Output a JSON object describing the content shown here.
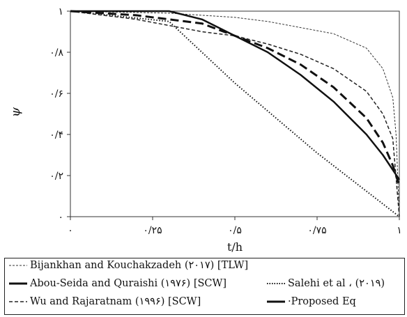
{
  "chart_data": {
    "type": "line",
    "xlabel": "t/h",
    "ylabel": "ψ",
    "xlim": [
      0,
      1
    ],
    "ylim": [
      0,
      1
    ],
    "x_ticks": [
      0,
      0.25,
      0.5,
      0.75,
      1
    ],
    "x_tick_labels": [
      "۰",
      "۰/۲۵",
      "۰/۵",
      "۰/۷۵",
      "۱"
    ],
    "y_ticks": [
      0,
      0.2,
      0.4,
      0.6,
      0.8,
      1
    ],
    "y_tick_labels": [
      "۰",
      "۰/۲",
      "۰/۴",
      "۰/۶",
      "۰/۸",
      "۱"
    ],
    "grid": false,
    "series": [
      {
        "name": "Bijankhan and Kouchakzadeh (۲۰۱۷) [TLW]",
        "style": "short-dash-thin",
        "x": [
          0,
          0.3,
          0.5,
          0.6,
          0.7,
          0.8,
          0.9,
          0.95,
          0.98,
          0.99,
          1.0
        ],
        "y": [
          1.0,
          0.99,
          0.97,
          0.95,
          0.92,
          0.89,
          0.82,
          0.72,
          0.58,
          0.4,
          0.0
        ]
      },
      {
        "name": "Abou-Seida and Quraishi (۱۹۷۶) [SCW]",
        "style": "solid-thick",
        "x": [
          0.0,
          0.15,
          0.3,
          0.4,
          0.5,
          0.6,
          0.7,
          0.8,
          0.9,
          0.95,
          1.0
        ],
        "y": [
          1.0,
          1.0,
          1.0,
          0.96,
          0.88,
          0.8,
          0.69,
          0.56,
          0.4,
          0.3,
          0.18
        ]
      },
      {
        "name": "Salehi et al ، (۲۰۱۹)",
        "style": "dotted",
        "x": [
          0,
          0.3,
          0.5,
          0.75,
          1.0
        ],
        "y": [
          1.0,
          0.95,
          0.65,
          0.31,
          0.0
        ]
      },
      {
        "name": "Wu and Rajaratnam (۱۹۹۶) [SCW]",
        "style": "dashed",
        "x": [
          0.0,
          0.1,
          0.2,
          0.3,
          0.4,
          0.5,
          0.6,
          0.7,
          0.8,
          0.9,
          0.95,
          0.98,
          1.0
        ],
        "y": [
          1.0,
          0.98,
          0.96,
          0.93,
          0.9,
          0.88,
          0.84,
          0.79,
          0.72,
          0.61,
          0.5,
          0.38,
          0.0
        ]
      },
      {
        "name": "·Proposed Eq",
        "style": "long-dash",
        "x": [
          0.0,
          0.2,
          0.4,
          0.5,
          0.6,
          0.7,
          0.8,
          0.9,
          0.95,
          0.98,
          1.0
        ],
        "y": [
          1.0,
          0.98,
          0.94,
          0.88,
          0.82,
          0.74,
          0.63,
          0.48,
          0.36,
          0.25,
          0.15
        ]
      }
    ]
  }
}
